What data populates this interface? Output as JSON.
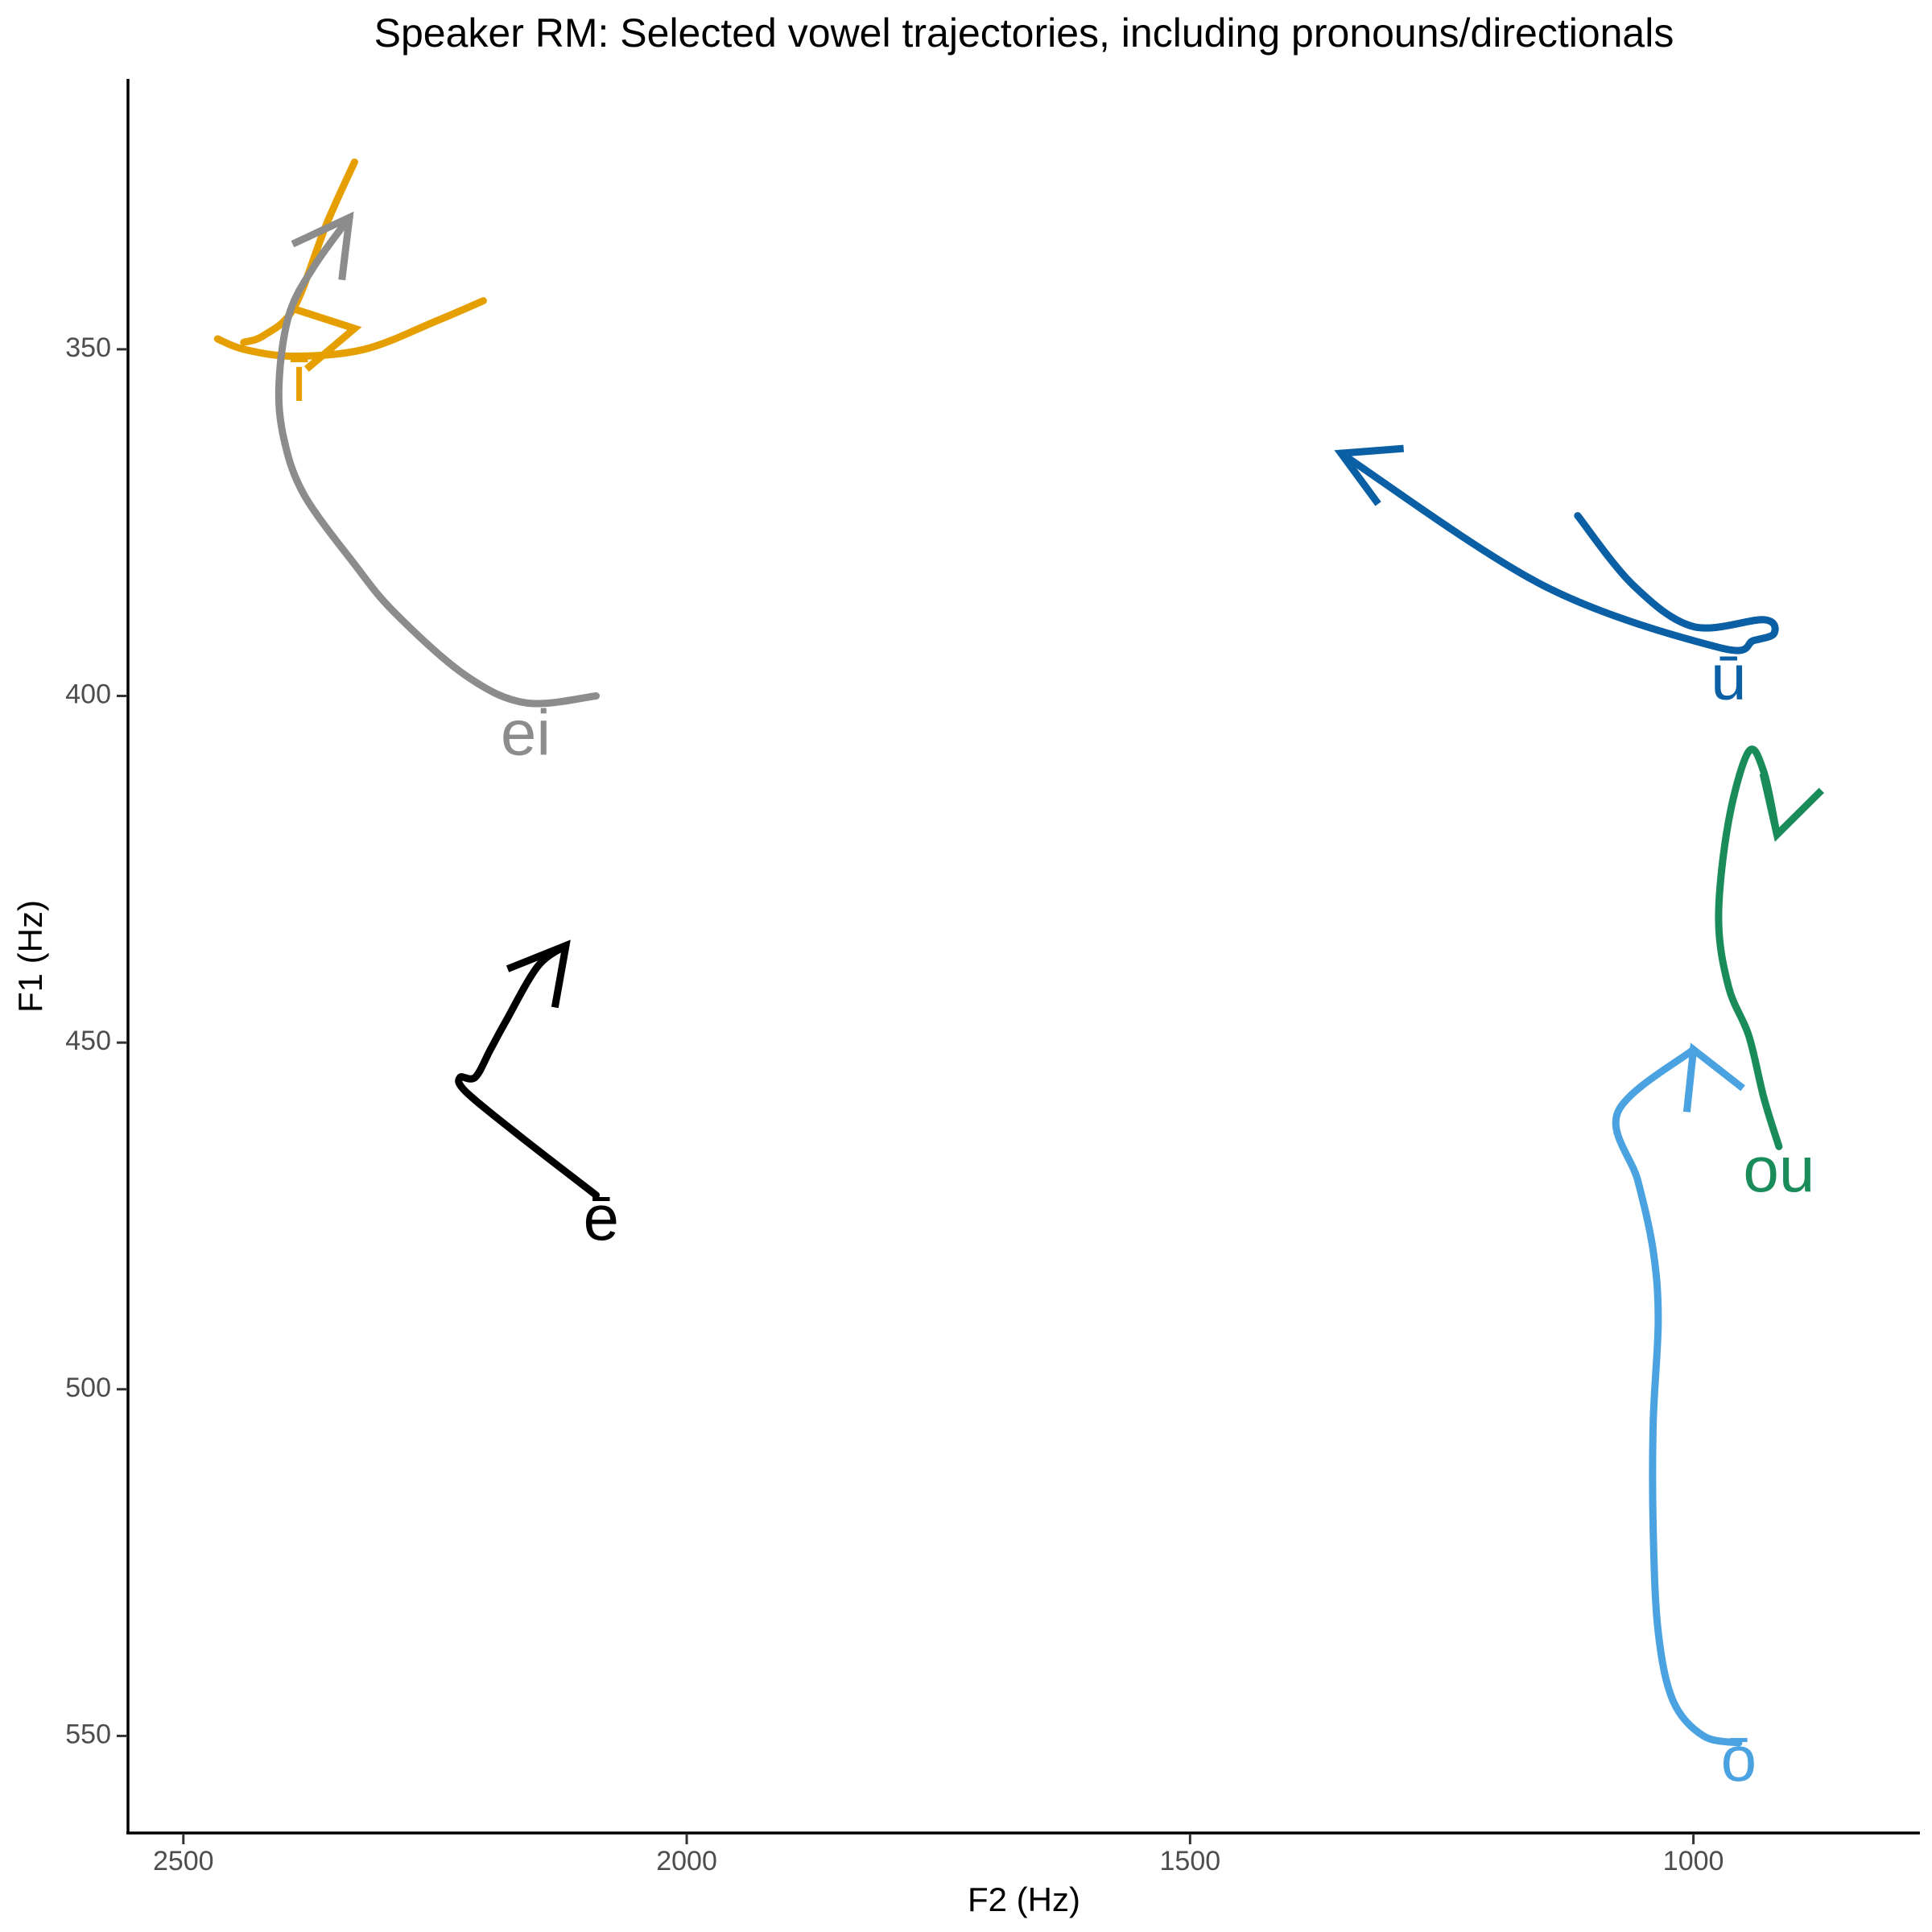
{
  "chart_data": {
    "type": "line",
    "title": "Speaker RM: Selected vowel trajectories, including pronouns/directionals",
    "xlabel": "F2 (Hz)",
    "ylabel": "F1 (Hz)",
    "x_reversed": true,
    "y_reversed": true,
    "xlim": [
      2555,
      775
    ],
    "ylim": [
      311,
      564
    ],
    "x_ticks": [
      2500,
      2000,
      1500,
      1000
    ],
    "y_ticks": [
      350,
      400,
      450,
      500,
      550
    ],
    "grid": false,
    "legend": "none",
    "series": [
      {
        "name": "ī",
        "color": "#E69F00",
        "label_at": [
          2385,
          355
        ],
        "paths": [
          [
            [
              2330,
              323
            ],
            [
              2358,
              332
            ],
            [
              2390,
              344
            ],
            [
              2420,
              348
            ],
            [
              2440,
              349
            ]
          ],
          [
            [
              2466,
              348.5
            ],
            [
              2440,
              350
            ],
            [
              2390,
              351
            ],
            [
              2320,
              350
            ],
            [
              2250,
              346
            ],
            [
              2202,
              343
            ]
          ]
        ]
      },
      {
        "name": "ei",
        "color": "#8C8C8C",
        "label_at": [
          2160,
          406
        ],
        "paths": [
          [
            [
              2090,
              400
            ],
            [
              2160,
              401
            ],
            [
              2220,
              397
            ],
            [
              2290,
              388
            ],
            [
              2330,
              381
            ],
            [
              2380,
              371
            ],
            [
              2400,
              363
            ],
            [
              2405,
              355
            ],
            [
              2395,
              345
            ],
            [
              2370,
              338
            ],
            [
              2335,
              331
            ]
          ]
        ]
      },
      {
        "name": "ē",
        "color": "#000000",
        "label_at": [
          2085,
          476
        ],
        "paths": [
          [
            [
              2090,
              472
            ],
            [
              2170,
              463
            ],
            [
              2220,
              457
            ],
            [
              2225,
              455
            ],
            [
              2210,
              455
            ],
            [
              2195,
              451
            ],
            [
              2180,
              447
            ],
            [
              2148,
              439
            ],
            [
              2120,
              436
            ]
          ]
        ]
      },
      {
        "name": "ū",
        "color": "#0A5FA5",
        "label_at": [
          965,
          398
        ],
        "paths": [
          [
            [
              1115,
              374
            ],
            [
              1060,
              384
            ],
            [
              1000,
              390
            ],
            [
              930,
              389
            ],
            [
              920,
              391
            ],
            [
              940,
              392
            ],
            [
              975,
              393
            ],
            [
              1150,
              384
            ],
            [
              1350,
              365
            ]
          ]
        ]
      },
      {
        "name": "ou",
        "color": "#1A8C5A",
        "label_at": [
          915,
          469
        ],
        "paths": [
          [
            [
              915,
              465
            ],
            [
              930,
              458
            ],
            [
              945,
              449
            ],
            [
              965,
              442
            ],
            [
              975,
              432
            ],
            [
              965,
              418
            ],
            [
              945,
              408
            ],
            [
              930,
              411
            ],
            [
              917,
              420
            ]
          ]
        ]
      },
      {
        "name": "ō",
        "color": "#4AA3E0",
        "label_at": [
          955,
          554
        ],
        "paths": [
          [
            [
              955,
              551
            ],
            [
              990,
              550
            ],
            [
              1020,
              545
            ],
            [
              1035,
              535
            ],
            [
              1040,
              520
            ],
            [
              1040,
              505
            ],
            [
              1035,
              490
            ],
            [
              1040,
              480
            ],
            [
              1055,
              470
            ],
            [
              1075,
              460
            ],
            [
              1000,
              451
            ]
          ]
        ]
      }
    ],
    "arrows": [
      {
        "series": "ī",
        "at": [
          2330,
          347
        ],
        "from": [
          2400,
          349
        ]
      },
      {
        "series": "ei",
        "at": [
          2335,
          331
        ],
        "from": [
          2360,
          336
        ]
      },
      {
        "series": "ē",
        "at": [
          2120,
          436
        ],
        "from": [
          2148,
          441
        ]
      },
      {
        "series": "ū",
        "at": [
          1350,
          365
        ],
        "from": [
          1200,
          375
        ]
      },
      {
        "series": "ou",
        "at": [
          917,
          420
        ],
        "from": [
          905,
          414
        ]
      },
      {
        "series": "ō",
        "at": [
          1000,
          451
        ],
        "from": [
          965,
          463
        ]
      }
    ]
  }
}
